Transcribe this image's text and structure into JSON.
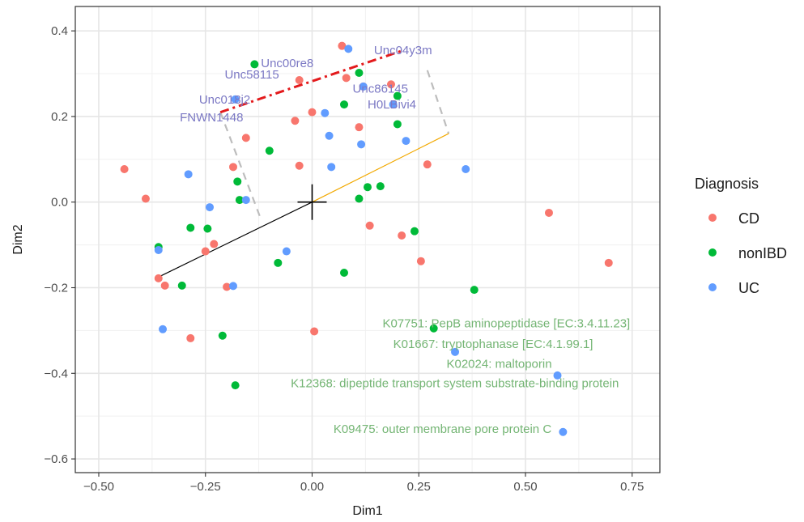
{
  "chart_data": {
    "type": "scatter",
    "xlabel": "Dim1",
    "ylabel": "Dim2",
    "xlim": [
      -0.555,
      0.815
    ],
    "ylim": [
      -0.632,
      0.457
    ],
    "x_ticks": [
      -0.5,
      -0.25,
      0.0,
      0.25,
      0.5,
      0.75
    ],
    "x_tick_labels": [
      "−0.50",
      "−0.25",
      "0.00",
      "0.25",
      "0.50",
      "0.75"
    ],
    "y_ticks": [
      -0.6,
      -0.4,
      -0.2,
      0.0,
      0.2,
      0.4
    ],
    "y_tick_labels": [
      "−0.6",
      "−0.4",
      "−0.2",
      "0.0",
      "0.2",
      "0.4"
    ],
    "grid": true,
    "legend": {
      "title": "Diagnosis",
      "placement": "right",
      "entries": [
        {
          "label": "CD",
          "color": "#f8766d"
        },
        {
          "label": "nonIBD",
          "color": "#00ba38"
        },
        {
          "label": "UC",
          "color": "#619cff"
        }
      ]
    },
    "series": [
      {
        "name": "CD",
        "color": "#f8766d",
        "points": [
          [
            0.07,
            0.365
          ],
          [
            0.08,
            0.29
          ],
          [
            -0.03,
            0.285
          ],
          [
            0.12,
            0.27
          ],
          [
            0.185,
            0.275
          ],
          [
            0.0,
            0.21
          ],
          [
            -0.04,
            0.19
          ],
          [
            0.11,
            0.175
          ],
          [
            -0.155,
            0.15
          ],
          [
            -0.185,
            0.082
          ],
          [
            -0.03,
            0.085
          ],
          [
            0.27,
            0.088
          ],
          [
            -0.44,
            0.077
          ],
          [
            -0.39,
            0.008
          ],
          [
            0.555,
            -0.025
          ],
          [
            0.135,
            -0.055
          ],
          [
            0.21,
            -0.078
          ],
          [
            -0.23,
            -0.098
          ],
          [
            -0.25,
            -0.115
          ],
          [
            0.255,
            -0.138
          ],
          [
            0.695,
            -0.142
          ],
          [
            -0.36,
            -0.178
          ],
          [
            -0.345,
            -0.195
          ],
          [
            -0.2,
            -0.198
          ],
          [
            0.005,
            -0.302
          ],
          [
            -0.285,
            -0.318
          ]
        ]
      },
      {
        "name": "nonIBD",
        "color": "#00ba38",
        "points": [
          [
            -0.135,
            0.322
          ],
          [
            0.11,
            0.302
          ],
          [
            0.2,
            0.248
          ],
          [
            0.075,
            0.228
          ],
          [
            0.2,
            0.182
          ],
          [
            -0.1,
            0.12
          ],
          [
            -0.175,
            0.048
          ],
          [
            0.13,
            0.035
          ],
          [
            0.16,
            0.037
          ],
          [
            -0.17,
            0.005
          ],
          [
            0.11,
            0.008
          ],
          [
            -0.285,
            -0.06
          ],
          [
            -0.245,
            -0.062
          ],
          [
            0.24,
            -0.068
          ],
          [
            -0.36,
            -0.105
          ],
          [
            -0.08,
            -0.142
          ],
          [
            0.075,
            -0.165
          ],
          [
            -0.305,
            -0.195
          ],
          [
            0.38,
            -0.205
          ],
          [
            0.285,
            -0.295
          ],
          [
            -0.21,
            -0.312
          ],
          [
            -0.18,
            -0.428
          ]
        ]
      },
      {
        "name": "UC",
        "color": "#619cff",
        "points": [
          [
            0.085,
            0.358
          ],
          [
            0.12,
            0.27
          ],
          [
            -0.18,
            0.24
          ],
          [
            0.19,
            0.228
          ],
          [
            0.03,
            0.208
          ],
          [
            0.04,
            0.155
          ],
          [
            0.115,
            0.135
          ],
          [
            0.22,
            0.143
          ],
          [
            0.045,
            0.082
          ],
          [
            0.36,
            0.077
          ],
          [
            -0.29,
            0.065
          ],
          [
            -0.24,
            -0.012
          ],
          [
            -0.155,
            0.005
          ],
          [
            -0.36,
            -0.112
          ],
          [
            -0.06,
            -0.115
          ],
          [
            -0.185,
            -0.196
          ],
          [
            -0.35,
            -0.297
          ],
          [
            0.335,
            -0.35
          ],
          [
            0.575,
            -0.405
          ],
          [
            0.588,
            -0.537
          ]
        ]
      }
    ],
    "annotations": {
      "taxa": [
        {
          "text": "Unc04y3m",
          "x": 0.145,
          "y": 0.355
        },
        {
          "text": "Unc00re8",
          "x": -0.12,
          "y": 0.325
        },
        {
          "text": "Unc58115",
          "x": -0.205,
          "y": 0.298
        },
        {
          "text": "Unc86145",
          "x": 0.095,
          "y": 0.265
        },
        {
          "text": "H0LBivi4",
          "x": 0.13,
          "y": 0.228
        },
        {
          "text": "Unc018j2",
          "x": -0.265,
          "y": 0.24
        },
        {
          "text": "FNWN1448",
          "x": -0.31,
          "y": 0.198
        }
      ],
      "kegg": [
        {
          "text": "K07751: PepB aminopeptidase [EC:3.4.11.23]",
          "x": 0.165,
          "y": -0.283
        },
        {
          "text": "K01667: tryptophanase [EC:4.1.99.1]",
          "x": 0.19,
          "y": -0.331
        },
        {
          "text": "K02024: maltoporin",
          "x": 0.315,
          "y": -0.378
        },
        {
          "text": "K12368: dipeptide transport system substrate-binding protein",
          "x": -0.05,
          "y": -0.423
        },
        {
          "text": "K09475: outer membrane pore protein C",
          "x": 0.05,
          "y": -0.53
        }
      ]
    },
    "lines": {
      "black_arrow": [
        [
          -0.36,
          -0.175
        ],
        [
          0.0,
          0.0
        ]
      ],
      "orange_arrow": [
        [
          0.0,
          0.0
        ],
        [
          0.32,
          0.16
        ]
      ],
      "red_dashdot": [
        [
          -0.215,
          0.21
        ],
        [
          0.215,
          0.355
        ]
      ],
      "gray_dashed": [
        [
          0.27,
          0.308
        ],
        [
          0.32,
          0.16
        ],
        [
          0.32,
          0.16
        ],
        [
          0.0,
          0.0
        ],
        [
          -0.215,
          0.21
        ],
        [
          -0.12,
          -0.04
        ]
      ]
    }
  }
}
